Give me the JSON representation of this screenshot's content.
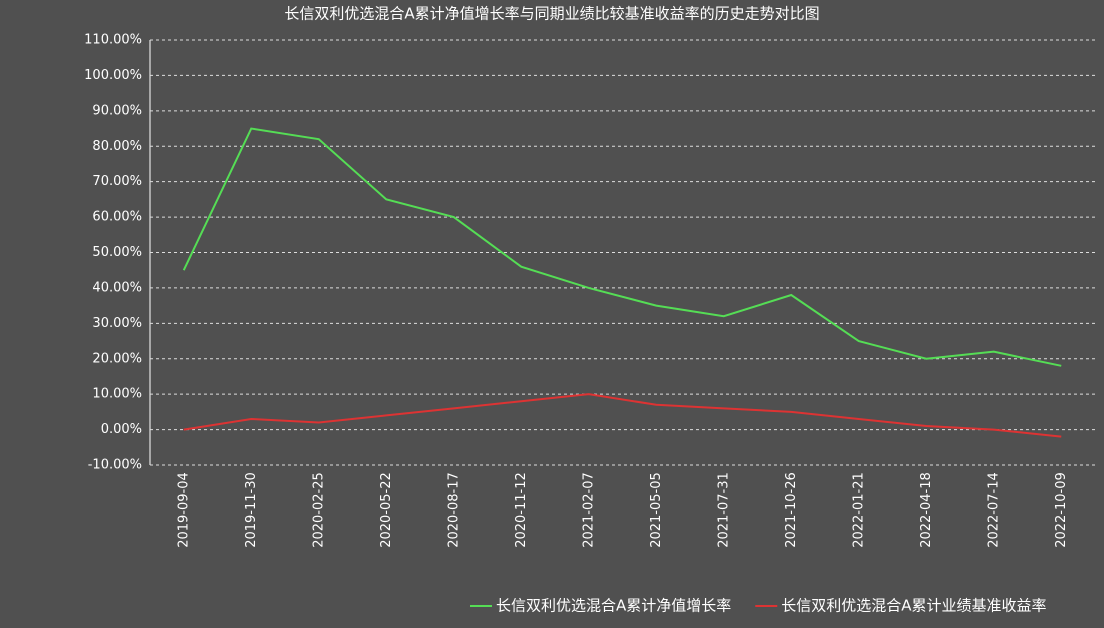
{
  "chart_data": {
    "type": "line",
    "title": "长信双利优选混合A累计净值增长率与同期业绩比较基准收益率的历史走势对比图",
    "categories": [
      "2019-09-04",
      "2019-11-30",
      "2020-02-25",
      "2020-05-22",
      "2020-08-17",
      "2020-11-12",
      "2021-02-07",
      "2021-05-05",
      "2021-07-31",
      "2021-10-26",
      "2022-01-21",
      "2022-04-18",
      "2022-07-14",
      "2022-10-09"
    ],
    "series": [
      {
        "name": "长信双利优选混合A累计净值增长率",
        "color": "#55dd55",
        "values": [
          45,
          85,
          82,
          65,
          60,
          46,
          40,
          35,
          32,
          38,
          25,
          20,
          22,
          18
        ]
      },
      {
        "name": "长信双利优选混合A累计业绩基准收益率",
        "color": "#dd3333",
        "values": [
          0,
          3,
          2,
          4,
          6,
          8,
          10,
          7,
          6,
          5,
          3,
          1,
          0,
          -2
        ]
      }
    ],
    "ylim": [
      -10,
      110
    ],
    "yticks": [
      {
        "value": -10,
        "label": "-10.00%"
      },
      {
        "value": 0,
        "label": "0.00%"
      },
      {
        "value": 10,
        "label": "10.00%"
      },
      {
        "value": 20,
        "label": "20.00%"
      },
      {
        "value": 30,
        "label": "30.00%"
      },
      {
        "value": 40,
        "label": "40.00%"
      },
      {
        "value": 50,
        "label": "50.00%"
      },
      {
        "value": 60,
        "label": "60.00%"
      },
      {
        "value": 70,
        "label": "70.00%"
      },
      {
        "value": 80,
        "label": "80.00%"
      },
      {
        "value": 90,
        "label": "90.00%"
      },
      {
        "value": 100,
        "label": "100.00%"
      },
      {
        "value": 110,
        "label": "110.00%"
      }
    ],
    "grid": true
  }
}
